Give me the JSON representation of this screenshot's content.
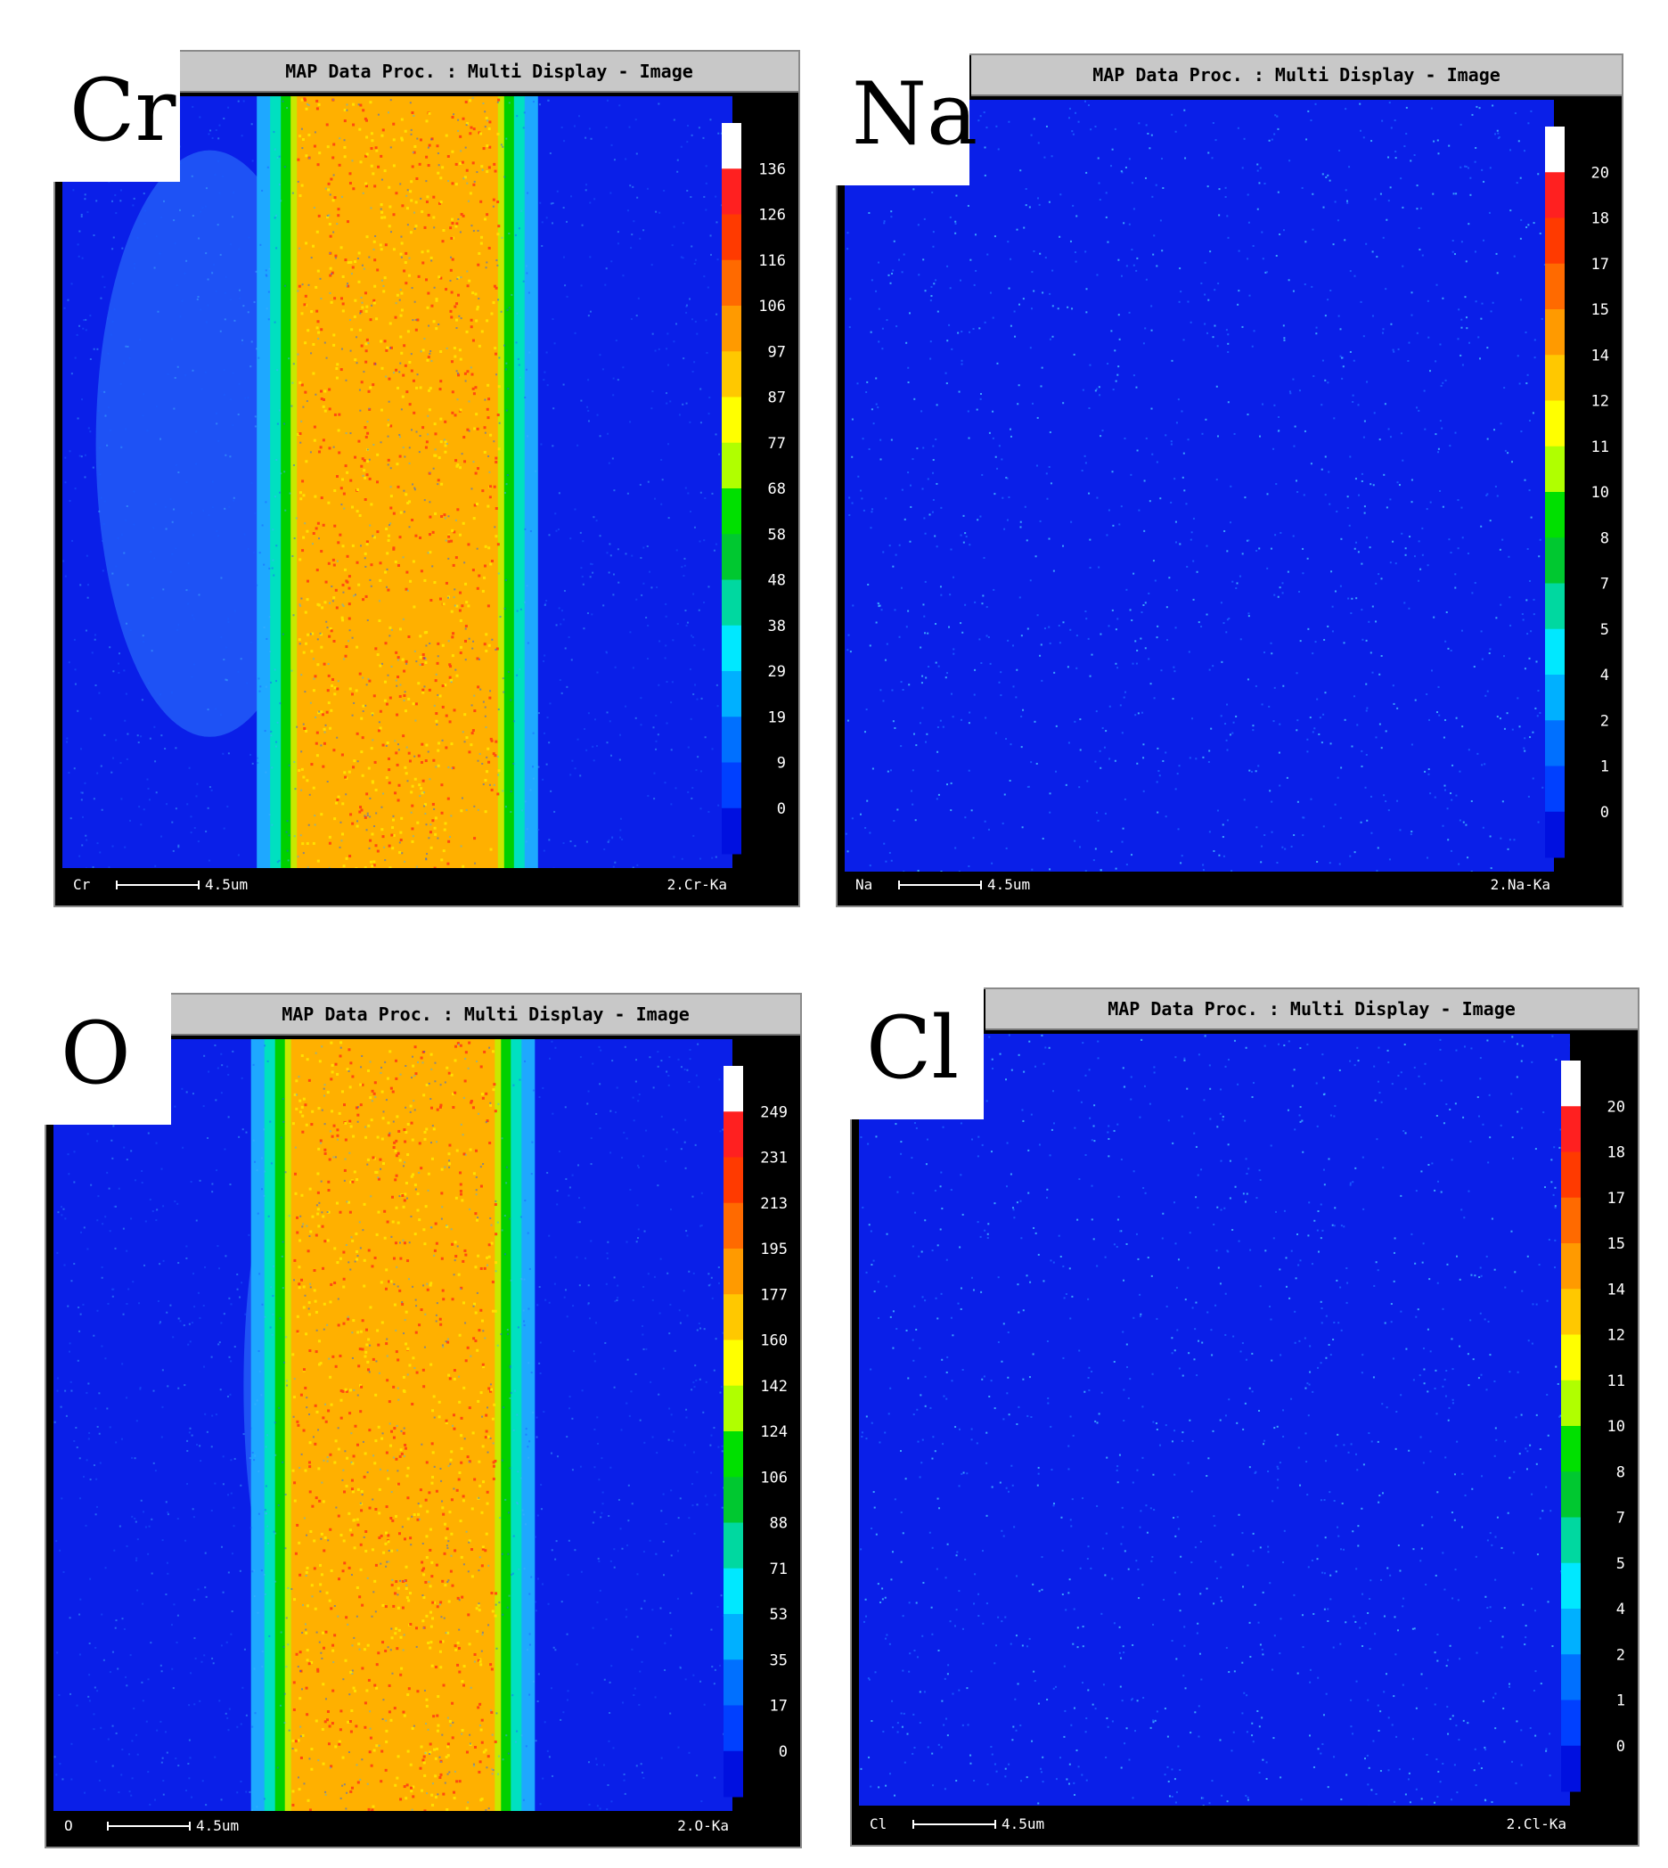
{
  "panels": [
    {
      "element": "Cr",
      "window_title": "MAP Data Proc. : Multi Display - Image",
      "footer_element": "Cr",
      "scale_bar": "4.5um",
      "line_label": "2.Cr-Ka",
      "colorbar_ticks": [
        "136",
        "126",
        "116",
        "106",
        "97",
        "87",
        "77",
        "68",
        "58",
        "48",
        "38",
        "29",
        "19",
        "9",
        "0"
      ],
      "pattern": "band"
    },
    {
      "element": "Na",
      "window_title": "MAP Data Proc. : Multi Display - Image",
      "footer_element": "Na",
      "scale_bar": "4.5um",
      "line_label": "2.Na-Ka",
      "colorbar_ticks": [
        "20",
        "18",
        "17",
        "15",
        "14",
        "12",
        "11",
        "10",
        "8",
        "7",
        "5",
        "4",
        "2",
        "1",
        "0"
      ],
      "pattern": "noise"
    },
    {
      "element": "O",
      "window_title": "MAP Data Proc. : Multi Display - Image",
      "footer_element": "O",
      "scale_bar": "4.5um",
      "line_label": "2.O-Ka",
      "colorbar_ticks": [
        "249",
        "231",
        "213",
        "195",
        "177",
        "160",
        "142",
        "124",
        "106",
        "88",
        "71",
        "53",
        "35",
        "17",
        "0"
      ],
      "pattern": "band"
    },
    {
      "element": "Cl",
      "window_title": "MAP Data Proc. : Multi Display - Image",
      "footer_element": "Cl",
      "scale_bar": "4.5um",
      "line_label": "2.Cl-Ka",
      "colorbar_ticks": [
        "20",
        "18",
        "17",
        "15",
        "14",
        "12",
        "11",
        "10",
        "8",
        "7",
        "5",
        "4",
        "2",
        "1",
        "0"
      ],
      "pattern": "noise"
    }
  ],
  "colorbar_colors": [
    "#ffffff",
    "#ff2020",
    "#ff3a00",
    "#ff6a00",
    "#ff9a00",
    "#ffc800",
    "#ffff00",
    "#b0ff00",
    "#00e000",
    "#00c830",
    "#00d8a0",
    "#00e8ff",
    "#00b0ff",
    "#0070ff",
    "#0040ff",
    "#0010e0"
  ]
}
